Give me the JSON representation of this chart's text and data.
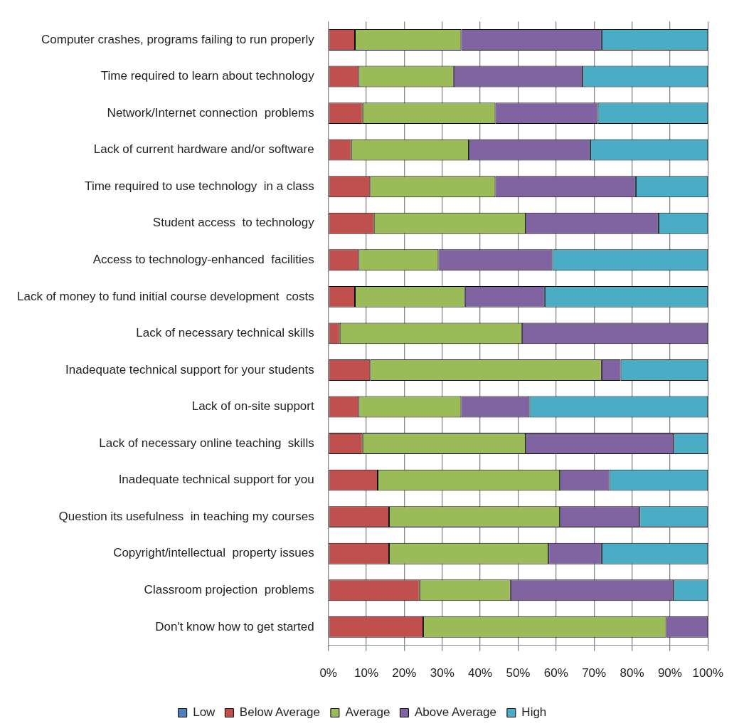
{
  "chart_data": {
    "type": "bar",
    "orientation": "horizontal",
    "stacked": true,
    "categories": [
      "Computer crashes, programs failing to run properly",
      "Time required to learn about technology",
      "Network/Internet connection  problems",
      "Lack of current hardware and/or software",
      "Time required to use technology  in a class",
      "Student access  to technology",
      "Access to technology-enhanced  facilities",
      "Lack of money to fund initial course development  costs",
      "Lack of necessary technical skills",
      "Inadequate technical support for your students",
      "Lack of on-site support",
      "Lack of necessary online teaching  skills",
      "Inadequate technical support for you",
      "Question its usefulness  in teaching my courses",
      "Copyright/intellectual  property issues",
      "Classroom projection  problems",
      "Don't know how to get started"
    ],
    "series": [
      {
        "name": "Low",
        "color": "#4f81bd",
        "values": [
          0,
          0,
          0,
          0,
          0,
          0,
          0,
          0,
          0,
          0,
          0,
          0,
          0,
          0,
          0,
          0,
          0
        ]
      },
      {
        "name": "Below Average",
        "color": "#c0504d",
        "values": [
          7,
          8,
          9,
          6,
          11,
          12,
          8,
          7,
          3,
          11,
          8,
          9,
          13,
          16,
          16,
          24,
          25
        ]
      },
      {
        "name": "Average",
        "color": "#9bbb59",
        "values": [
          28,
          25,
          35,
          31,
          33,
          40,
          21,
          29,
          48,
          61,
          27,
          43,
          48,
          45,
          42,
          24,
          64
        ]
      },
      {
        "name": "Above Average",
        "color": "#8064a2",
        "values": [
          37,
          34,
          27,
          32,
          37,
          35,
          30,
          21,
          49,
          5,
          18,
          39,
          13,
          21,
          14,
          43,
          11
        ]
      },
      {
        "name": "High",
        "color": "#4bacc6",
        "values": [
          28,
          33,
          29,
          31,
          19,
          13,
          41,
          43,
          0,
          23,
          47,
          9,
          26,
          18,
          28,
          9,
          0
        ]
      }
    ],
    "xlim": [
      0,
      100
    ],
    "xticks": [
      {
        "value": 0,
        "label": "0%"
      },
      {
        "value": 10,
        "label": "10%"
      },
      {
        "value": 20,
        "label": "20%"
      },
      {
        "value": 30,
        "label": "30%"
      },
      {
        "value": 40,
        "label": "40%"
      },
      {
        "value": 50,
        "label": "50%"
      },
      {
        "value": 60,
        "label": "60%"
      },
      {
        "value": 70,
        "label": "70%"
      },
      {
        "value": 80,
        "label": "80%"
      },
      {
        "value": 90,
        "label": "90%"
      },
      {
        "value": 100,
        "label": "100%"
      }
    ],
    "grid": "x",
    "legend": "bottom"
  }
}
